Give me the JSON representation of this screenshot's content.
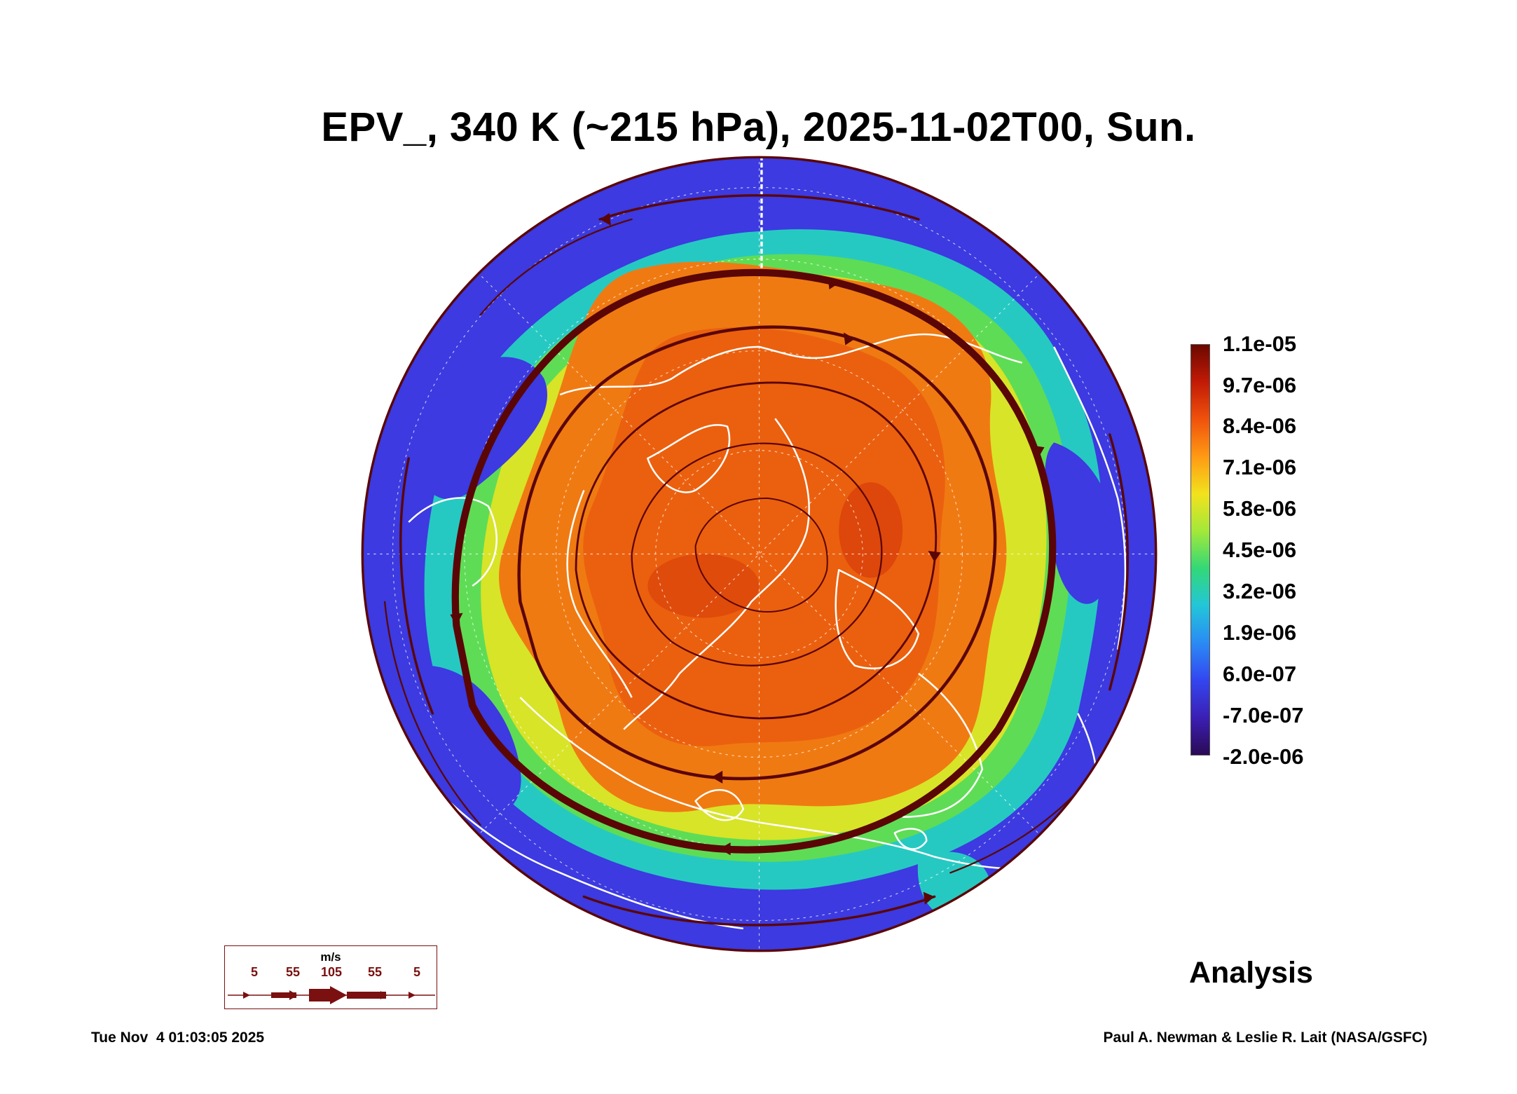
{
  "title": "EPV_, 340 K (~215 hPa), 2025-11-02T00, Sun.",
  "colorbar": {
    "labels": [
      "1.1e-05",
      "9.7e-06",
      "8.4e-06",
      "7.1e-06",
      "5.8e-06",
      "4.5e-06",
      "3.2e-06",
      "1.9e-06",
      "6.0e-07",
      "-7.0e-07",
      "-2.0e-06"
    ],
    "colors": [
      "#6b0800",
      "#c21a06",
      "#f0520c",
      "#ff9a14",
      "#f2e21d",
      "#a2e83a",
      "#33d877",
      "#22c6d8",
      "#2a8bf5",
      "#3346f0",
      "#3b1fb5",
      "#2a0a55"
    ]
  },
  "wind_legend": {
    "unit": "m/s",
    "labels": [
      "5",
      "55",
      "105",
      "55",
      "5"
    ]
  },
  "panel_label": "Analysis",
  "footer": {
    "timestamp": "Tue Nov  4 01:03:05 2025",
    "credit": "Paul A. Newman & Leslie R. Lait (NASA/GSFC)"
  },
  "map": {
    "projection": "north-polar-orthographic",
    "field": "EPV",
    "colors": {
      "low": "#3b2fd8",
      "mid": "#33d877",
      "high": "#f06a10",
      "peak": "#c21a06",
      "streamline": "#5a0606",
      "coastline": "#ffffff"
    }
  }
}
